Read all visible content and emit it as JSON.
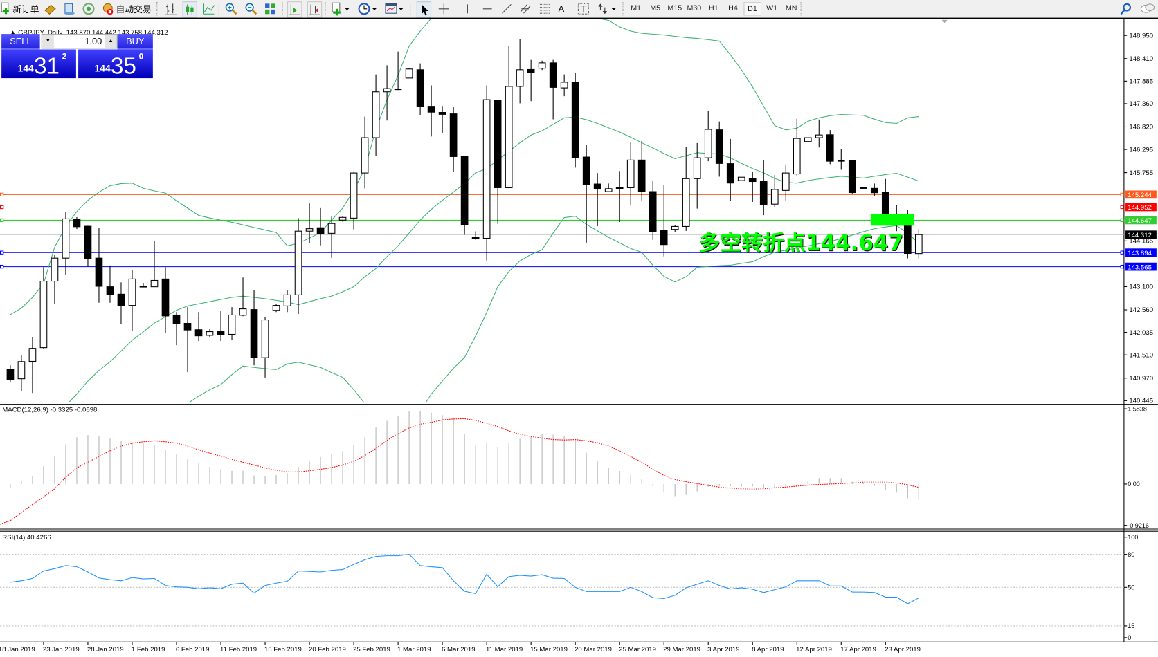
{
  "toolbar": {
    "new_order_label": "新订单",
    "auto_trade_label": "自动交易",
    "timeframes": [
      "M1",
      "M5",
      "M15",
      "M30",
      "H1",
      "H4",
      "D1",
      "W1",
      "MN"
    ],
    "active_timeframe": "D1",
    "drawing_text_tool": "A"
  },
  "trade_panel": {
    "sell_label": "SELL",
    "buy_label": "BUY",
    "lot": "1.00",
    "sell_price": {
      "prefix": "144",
      "big": "31",
      "sup": "2"
    },
    "buy_price": {
      "prefix": "144",
      "big": "35",
      "sup": "0"
    }
  },
  "chart": {
    "symbol_header": "GBPJPY-,Daily",
    "ohlc_header": "143.870 144.442 143.758 144.312",
    "annotation": "多空转折点144.647",
    "macd_header": "MACD(12,26,9) -0.3325 -0.0698",
    "rsi_header": "RSI(14) 40.4266"
  },
  "chart_data": {
    "type": "candlestick",
    "symbol": "GBPJPY-",
    "timeframe": "Daily",
    "price_ticks": [
      "148.950",
      "148.410",
      "147.885",
      "147.360",
      "146.820",
      "146.295",
      "145.755",
      "144.165",
      "143.100",
      "142.560",
      "142.035",
      "141.510",
      "140.970",
      "140.445"
    ],
    "ylim": [
      140.445,
      148.95
    ],
    "date_labels": [
      "18 Jan 2019",
      "23 Jan 2019",
      "28 Jan 2019",
      "1 Feb 2019",
      "6 Feb 2019",
      "11 Feb 2019",
      "15 Feb 2019",
      "20 Feb 2019",
      "25 Feb 2019",
      "1 Mar 2019",
      "6 Mar 2019",
      "11 Mar 2019",
      "15 Mar 2019",
      "20 Mar 2019",
      "25 Mar 2019",
      "29 Mar 2019",
      "3 Apr 2019",
      "8 Apr 2019",
      "12 Apr 2019",
      "17 Apr 2019",
      "23 Apr 2019"
    ],
    "colors": {
      "bull": "#ffffff",
      "bear": "#000000",
      "bands": "#3cb371",
      "macd_hist": "#c0c0c0",
      "macd_signal": "#ff0000",
      "rsi": "#1e90ff"
    },
    "levels": [
      {
        "label": "145.244",
        "price": 145.244,
        "color": "#ff5a1e"
      },
      {
        "label": "144.952",
        "price": 144.952,
        "color": "#ff0000"
      },
      {
        "label": "144.647",
        "price": 144.647,
        "color": "#32cd32"
      },
      {
        "label": "143.894",
        "price": 143.894,
        "color": "#0000ff"
      },
      {
        "label": "143.565",
        "price": 143.565,
        "color": "#0000ff"
      }
    ],
    "bid": {
      "label": "144.312",
      "price": 144.312,
      "color": "#c0c0c0"
    },
    "highlight_rect": {
      "price_high": 144.79,
      "price_low": 144.52,
      "color": "#00ff00"
    },
    "ohlc_columns": [
      "open",
      "high",
      "low",
      "close"
    ],
    "candles": [
      [
        141.178,
        141.269,
        140.881,
        140.938
      ],
      [
        140.955,
        141.509,
        140.664,
        141.355
      ],
      [
        141.361,
        141.926,
        140.624,
        141.663
      ],
      [
        141.68,
        143.554,
        141.652,
        143.228
      ],
      [
        143.228,
        143.839,
        142.697,
        143.765
      ],
      [
        143.765,
        144.833,
        143.382,
        144.679
      ],
      [
        144.667,
        144.719,
        144.444,
        144.496
      ],
      [
        144.507,
        144.519,
        143.565,
        143.753
      ],
      [
        143.765,
        144.462,
        142.725,
        143.108
      ],
      [
        143.097,
        143.594,
        142.725,
        142.92
      ],
      [
        142.925,
        143.199,
        142.223,
        142.663
      ],
      [
        142.663,
        143.491,
        142.063,
        143.279
      ],
      [
        143.097,
        143.188,
        143.097,
        143.108
      ],
      [
        143.097,
        144.17,
        143.097,
        143.245
      ],
      [
        143.279,
        143.554,
        142.012,
        142.417
      ],
      [
        142.44,
        142.508,
        141.737,
        142.24
      ],
      [
        142.246,
        142.623,
        141.109,
        142.091
      ],
      [
        142.097,
        142.508,
        141.835,
        141.954
      ],
      [
        141.966,
        142.109,
        141.926,
        142.052
      ],
      [
        142.052,
        142.543,
        141.835,
        141.983
      ],
      [
        141.989,
        142.623,
        141.852,
        142.44
      ],
      [
        142.434,
        143.314,
        142.411,
        142.583
      ],
      [
        142.566,
        143.022,
        141.269,
        141.446
      ],
      [
        141.446,
        142.394,
        140.984,
        142.326
      ],
      [
        142.548,
        142.697,
        142.508,
        142.663
      ],
      [
        142.651,
        143.022,
        142.508,
        142.908
      ],
      [
        142.908,
        144.696,
        142.463,
        144.393
      ],
      [
        144.393,
        145.038,
        144.113,
        144.45
      ],
      [
        144.473,
        144.93,
        144.062,
        144.336
      ],
      [
        144.342,
        144.73,
        143.771,
        144.57
      ],
      [
        144.65,
        144.747,
        144.61,
        144.713
      ],
      [
        144.696,
        145.764,
        144.433,
        145.747
      ],
      [
        145.747,
        147.06,
        145.387,
        146.569
      ],
      [
        146.569,
        148.042,
        146.146,
        147.637
      ],
      [
        147.637,
        148.254,
        146.969,
        147.711
      ],
      [
        147.694,
        148.574,
        147.677,
        147.705
      ],
      [
        147.957,
        148.197,
        147.957,
        148.168
      ],
      [
        148.151,
        148.299,
        147.094,
        147.289
      ],
      [
        147.3,
        147.785,
        146.597,
        147.163
      ],
      [
        147.157,
        147.306,
        146.677,
        147.112
      ],
      [
        147.123,
        147.283,
        145.775,
        146.129
      ],
      [
        146.135,
        146.135,
        144.307,
        144.547
      ],
      [
        144.25,
        144.387,
        144.193,
        144.227
      ],
      [
        144.227,
        147.785,
        143.708,
        147.454
      ],
      [
        147.437,
        147.454,
        144.564,
        145.404
      ],
      [
        145.404,
        148.705,
        145.393,
        147.763
      ],
      [
        147.763,
        148.865,
        147.369,
        148.151
      ],
      [
        148.157,
        148.379,
        147.42,
        148.082
      ],
      [
        148.185,
        148.362,
        148.145,
        148.311
      ],
      [
        148.311,
        148.379,
        146.997,
        147.74
      ],
      [
        147.728,
        148.042,
        147.534,
        147.86
      ],
      [
        147.86,
        148.077,
        145.872,
        146.112
      ],
      [
        146.118,
        146.392,
        144.125,
        145.484
      ],
      [
        145.49,
        145.747,
        144.507,
        145.37
      ],
      [
        145.313,
        145.501,
        145.313,
        145.381
      ],
      [
        145.392,
        145.792,
        144.604,
        145.404
      ],
      [
        145.404,
        146.46,
        144.993,
        146.049
      ],
      [
        146.049,
        146.495,
        145.107,
        145.307
      ],
      [
        145.313,
        145.558,
        144.193,
        144.387
      ],
      [
        144.41,
        145.472,
        143.805,
        144.079
      ],
      [
        144.433,
        144.536,
        144.376,
        144.502
      ],
      [
        144.502,
        146.352,
        144.399,
        145.615
      ],
      [
        145.615,
        146.443,
        144.918,
        146.101
      ],
      [
        146.101,
        147.186,
        146.021,
        146.763
      ],
      [
        146.752,
        146.946,
        145.661,
        145.969
      ],
      [
        145.964,
        146.54,
        145.096,
        145.512
      ],
      [
        145.57,
        145.649,
        145.57,
        145.649
      ],
      [
        145.621,
        145.769,
        145.073,
        145.547
      ],
      [
        145.558,
        146.044,
        144.764,
        145.016
      ],
      [
        145.021,
        145.701,
        144.958,
        145.364
      ],
      [
        145.341,
        145.946,
        145.107,
        145.747
      ],
      [
        145.724,
        147.009,
        145.689,
        146.552
      ],
      [
        146.478,
        146.569,
        146.478,
        146.569
      ],
      [
        146.569,
        146.992,
        146.341,
        146.632
      ],
      [
        146.637,
        146.746,
        145.952,
        146.021
      ],
      [
        146.038,
        146.301,
        145.821,
        146.021
      ],
      [
        146.038,
        146.049,
        145.267,
        145.29
      ],
      [
        145.405,
        145.415,
        145.385,
        145.395
      ],
      [
        145.389,
        145.501,
        145.206,
        145.287
      ],
      [
        145.3,
        145.61,
        144.6,
        144.65
      ],
      [
        144.65,
        145.008,
        144.392,
        144.62
      ],
      [
        144.55,
        144.88,
        143.76,
        143.873
      ],
      [
        143.87,
        144.442,
        143.758,
        144.312
      ]
    ],
    "bollinger": {
      "upper": [
        142.45,
        142.6,
        142.85,
        143.17,
        144.02,
        144.5,
        144.85,
        145.11,
        145.3,
        145.45,
        145.5,
        145.51,
        145.39,
        145.33,
        145.28,
        145.1,
        144.93,
        144.76,
        144.7,
        144.65,
        144.6,
        144.54,
        144.48,
        144.42,
        144.36,
        144.05,
        144.11,
        144.23,
        144.36,
        144.65,
        144.93,
        145.34,
        145.85,
        146.76,
        147.45,
        148.02,
        148.7,
        149.05,
        149.35,
        149.5,
        149.55,
        149.6,
        149.6,
        149.6,
        149.6,
        149.6,
        149.6,
        149.55,
        149.5,
        149.5,
        149.45,
        149.4,
        149.4,
        149.35,
        149.3,
        149.15,
        149.05,
        149.0,
        148.98,
        148.96,
        148.93,
        148.9,
        148.88,
        148.85,
        148.82,
        148.5,
        148.15,
        147.75,
        147.3,
        146.85,
        146.75,
        146.79,
        146.95,
        147.03,
        147.08,
        147.11,
        147.1,
        147.09,
        147.0,
        146.92,
        146.9,
        147.03,
        147.06
      ],
      "middle": [
        139.6,
        139.75,
        139.9,
        140.05,
        140.2,
        140.33,
        140.6,
        140.9,
        141.15,
        141.35,
        141.6,
        141.85,
        142.05,
        142.25,
        142.4,
        142.55,
        142.65,
        142.7,
        142.75,
        142.8,
        142.85,
        142.88,
        142.85,
        142.82,
        142.78,
        142.74,
        142.68,
        142.75,
        142.82,
        142.88,
        142.98,
        143.1,
        143.33,
        143.52,
        143.8,
        144.05,
        144.35,
        144.65,
        144.9,
        145.11,
        145.3,
        145.5,
        145.75,
        145.85,
        146.05,
        146.25,
        146.45,
        146.63,
        146.73,
        146.88,
        147.03,
        147.05,
        146.99,
        146.9,
        146.8,
        146.7,
        146.58,
        146.45,
        146.33,
        146.2,
        146.08,
        146.15,
        146.22,
        146.2,
        146.19,
        146.1,
        145.97,
        145.85,
        145.75,
        145.62,
        145.53,
        145.51,
        145.57,
        145.61,
        145.64,
        145.67,
        145.65,
        145.63,
        145.67,
        145.71,
        145.74,
        145.65,
        145.56
      ],
      "lower": [
        137.0,
        137.2,
        137.4,
        137.6,
        137.8,
        138.0,
        138.3,
        138.6,
        138.9,
        139.2,
        139.4,
        139.6,
        139.8,
        140.0,
        140.15,
        140.3,
        140.38,
        140.55,
        140.7,
        140.82,
        141.05,
        141.25,
        141.22,
        141.19,
        141.17,
        141.3,
        141.34,
        141.28,
        141.22,
        141.1,
        140.99,
        140.7,
        140.38,
        140.1,
        139.9,
        139.8,
        139.9,
        140.2,
        140.6,
        140.9,
        141.2,
        141.45,
        141.95,
        142.5,
        143.1,
        143.45,
        143.7,
        143.85,
        143.96,
        144.35,
        144.71,
        144.74,
        144.55,
        144.4,
        144.25,
        144.12,
        143.99,
        143.9,
        143.6,
        143.34,
        143.21,
        143.33,
        143.55,
        143.57,
        143.59,
        143.6,
        143.64,
        143.68,
        143.8,
        143.9,
        143.95,
        144.0,
        144.05,
        144.1,
        144.15,
        144.22,
        144.3,
        144.38,
        144.45,
        144.49,
        144.52,
        144.35,
        144.11
      ]
    },
    "macd": {
      "ticks": [
        "1.5838",
        "0.00",
        "-0.9216"
      ],
      "ylim": [
        -0.9216,
        1.5838
      ],
      "histogram": [
        -0.087,
        0.053,
        0.164,
        0.377,
        0.58,
        0.83,
        0.985,
        1.03,
        1.01,
        0.956,
        0.9,
        0.88,
        0.855,
        0.83,
        0.724,
        0.623,
        0.52,
        0.435,
        0.362,
        0.31,
        0.28,
        0.28,
        0.18,
        0.164,
        0.19,
        0.227,
        0.362,
        0.478,
        0.57,
        0.637,
        0.695,
        0.83,
        0.985,
        1.19,
        1.33,
        1.43,
        1.536,
        1.536,
        1.5,
        1.45,
        1.39,
        1.06,
        0.81,
        0.88,
        0.77,
        0.86,
        0.956,
        1.01,
        1.06,
        1.04,
        1.02,
        0.937,
        0.657,
        0.49,
        0.348,
        0.275,
        0.2,
        0.116,
        -0.04,
        -0.18,
        -0.256,
        -0.23,
        -0.155,
        -0.058,
        -0.04,
        -0.04,
        -0.05,
        -0.05,
        -0.077,
        -0.087,
        -0.077,
        -0.04,
        0.068,
        0.126,
        0.126,
        0.126,
        0.048,
        0.04,
        -0.04,
        -0.126,
        -0.18,
        -0.3,
        -0.3325
      ],
      "signal": [
        -0.77,
        -0.6,
        -0.43,
        -0.27,
        -0.1,
        0.145,
        0.34,
        0.46,
        0.58,
        0.7,
        0.8,
        0.86,
        0.89,
        0.91,
        0.89,
        0.86,
        0.8,
        0.72,
        0.65,
        0.59,
        0.52,
        0.46,
        0.4,
        0.34,
        0.29,
        0.256,
        0.256,
        0.28,
        0.31,
        0.348,
        0.4,
        0.48,
        0.6,
        0.75,
        0.92,
        1.06,
        1.18,
        1.26,
        1.3,
        1.35,
        1.37,
        1.376,
        1.34,
        1.28,
        1.21,
        1.12,
        1.05,
        1.0,
        0.966,
        0.937,
        0.927,
        0.937,
        0.91,
        0.87,
        0.8,
        0.7,
        0.58,
        0.46,
        0.31,
        0.18,
        0.097,
        0.048,
        0.01,
        -0.03,
        -0.063,
        -0.087,
        -0.1,
        -0.106,
        -0.1,
        -0.077,
        -0.063,
        -0.043,
        -0.024,
        -0.01,
        0,
        0.01,
        0.024,
        0.04,
        0.04,
        0.04,
        0.02,
        -0.015,
        -0.0698
      ]
    },
    "rsi": {
      "ticks": [
        "100",
        "80",
        "50",
        "15",
        "0"
      ],
      "levels": [
        80,
        50,
        15
      ],
      "values": [
        54.7,
        56.0,
        58.1,
        64.9,
        67.0,
        69.8,
        68.7,
        64.0,
        58.5,
        57.0,
        56.0,
        58.9,
        57.7,
        58.1,
        51.7,
        50.4,
        50.0,
        48.7,
        49.6,
        48.7,
        52.8,
        53.8,
        44.7,
        51.7,
        53.8,
        55.5,
        64.9,
        64.5,
        64.0,
        65.5,
        66.2,
        70.9,
        75.1,
        78.1,
        78.7,
        78.7,
        80.0,
        69.8,
        68.7,
        67.9,
        56.0,
        46.4,
        44.3,
        61.9,
        50.6,
        59.8,
        60.9,
        60.2,
        61.5,
        58.3,
        58.1,
        50.0,
        46.2,
        46.2,
        46.2,
        46.2,
        50.0,
        46.2,
        40.6,
        39.8,
        42.8,
        49.6,
        52.8,
        56.0,
        51.7,
        48.5,
        49.6,
        48.3,
        45.3,
        47.9,
        50.4,
        56.0,
        56.0,
        56.0,
        51.3,
        51.3,
        45.7,
        45.7,
        45.3,
        41.1,
        41.1,
        35.1,
        40.43
      ]
    }
  }
}
